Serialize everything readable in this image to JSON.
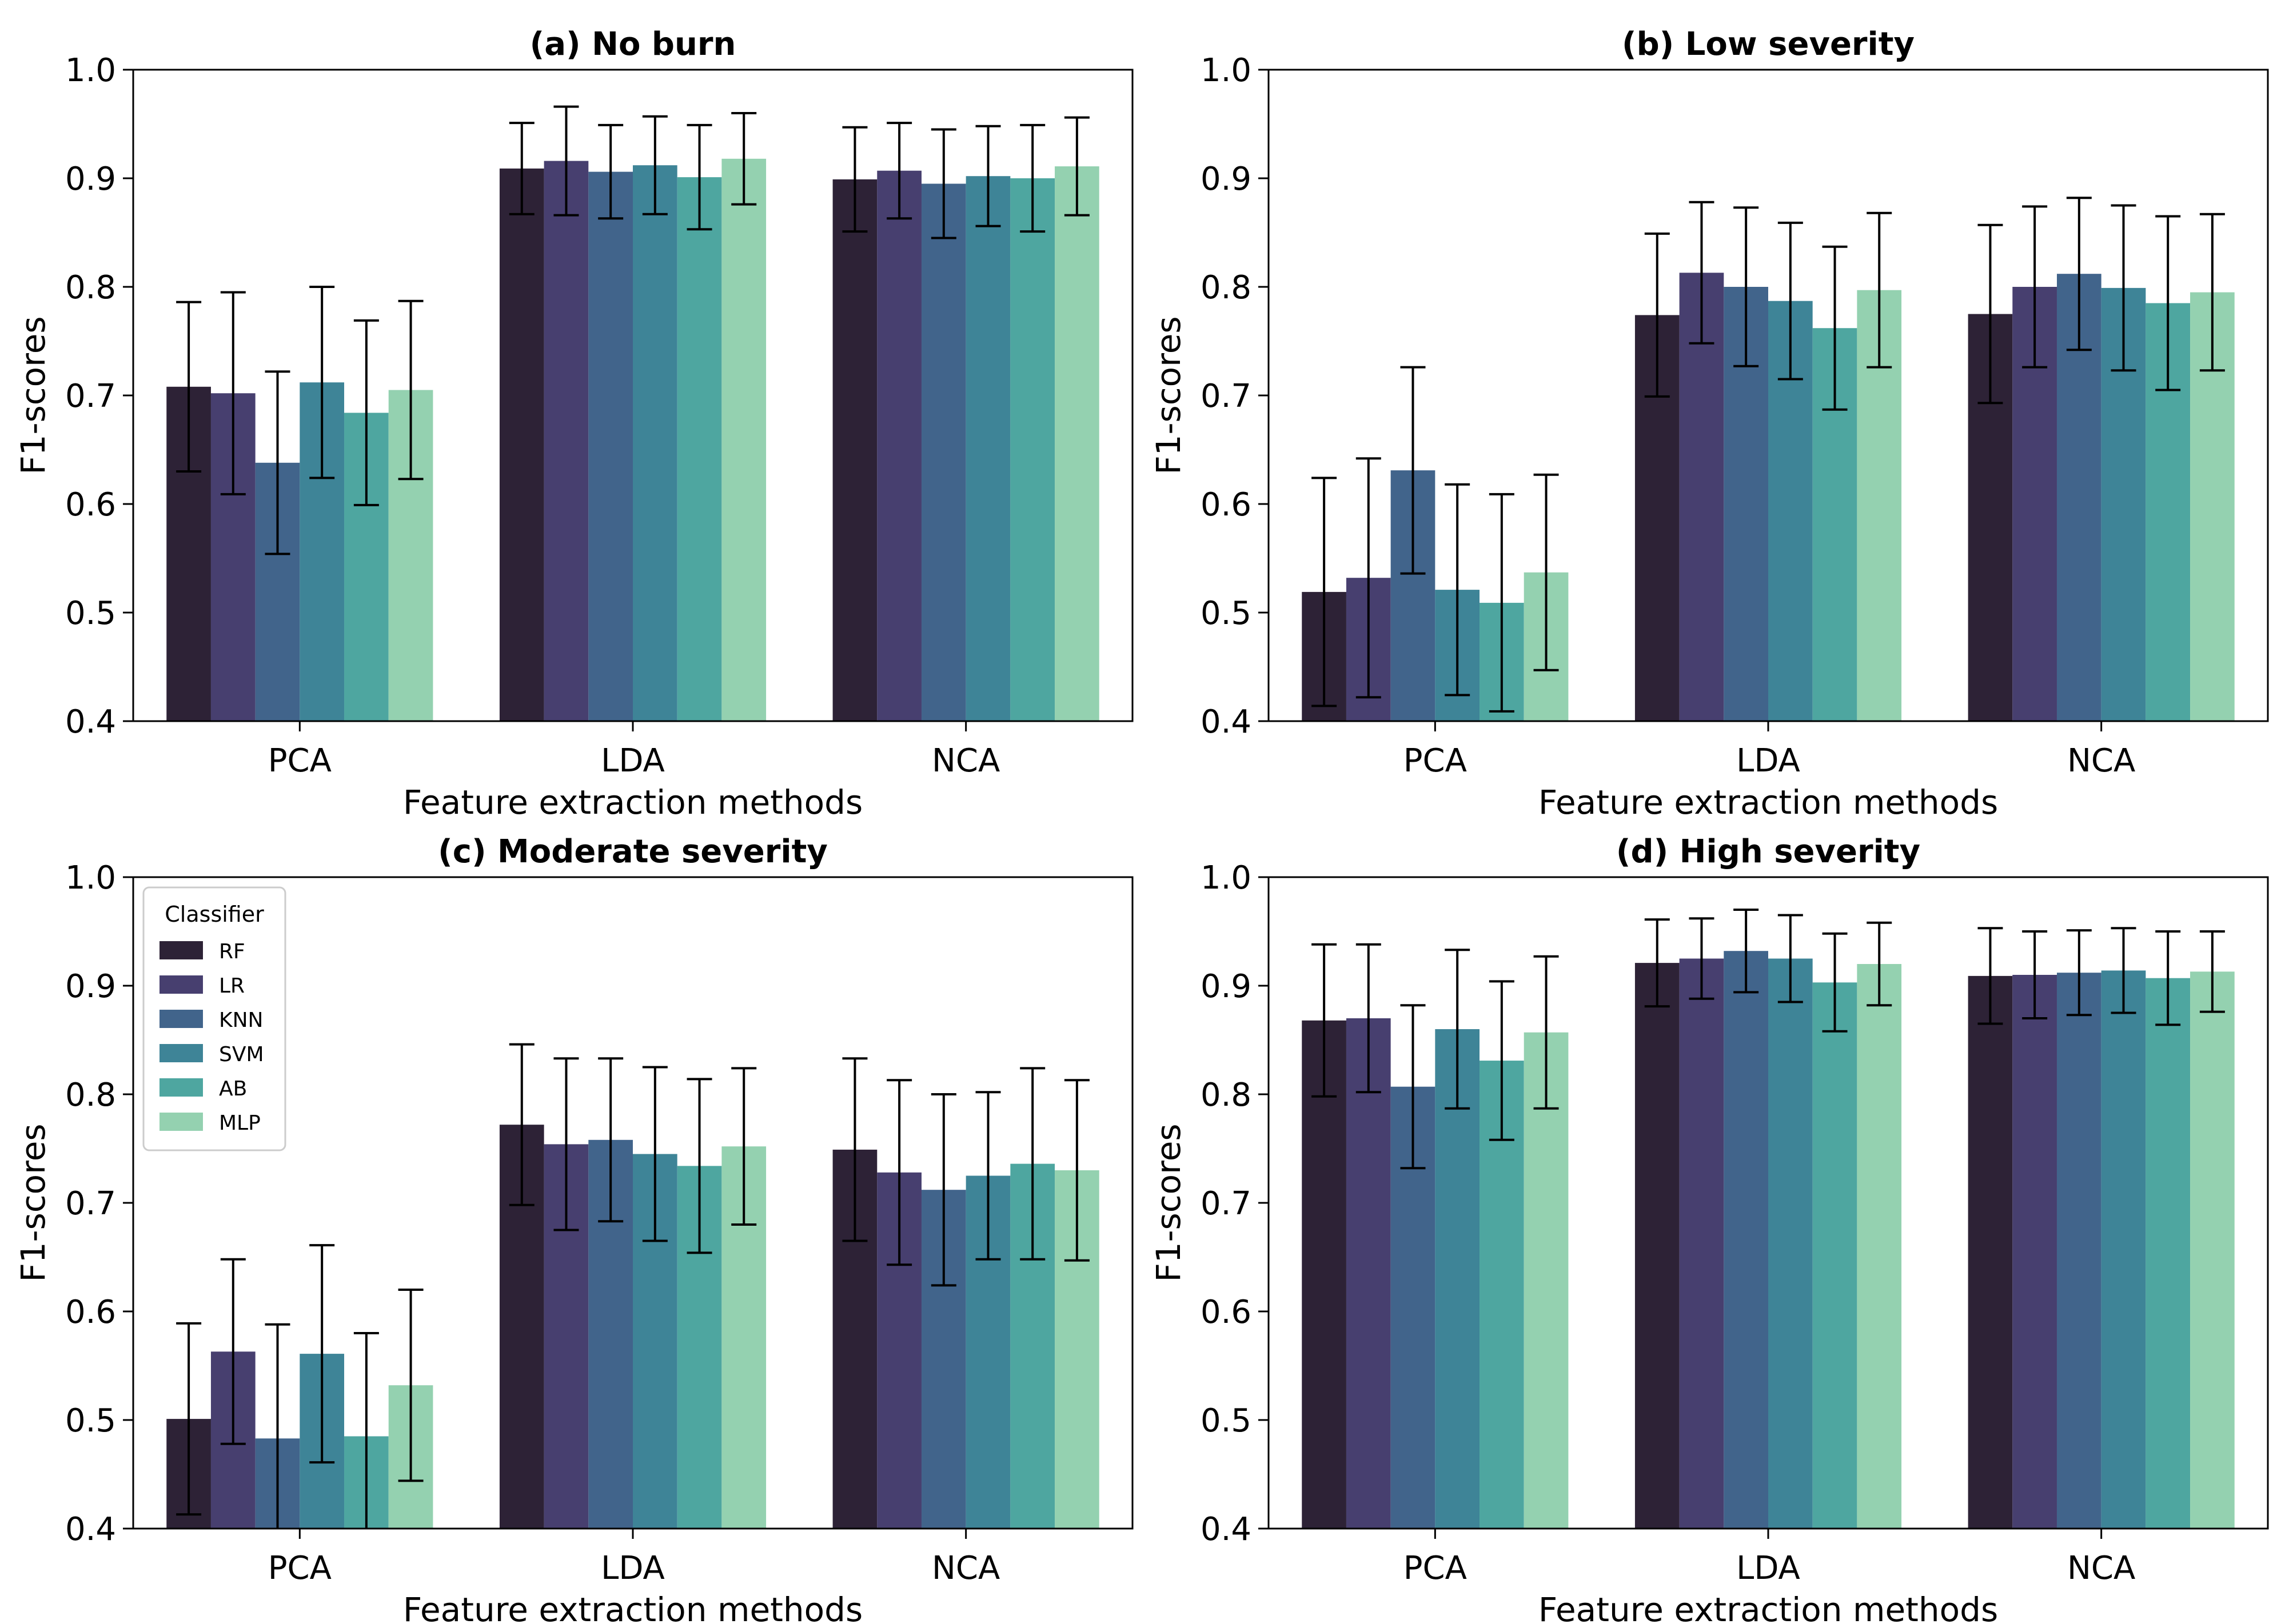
{
  "chart_data": [
    {
      "type": "bar",
      "title": "(a) No burn",
      "xlabel": "Feature extraction methods",
      "ylabel": "F1-scores",
      "ylim": [
        0.4,
        1.0
      ],
      "yticks": [
        "0.4",
        "0.5",
        "0.6",
        "0.7",
        "0.8",
        "0.9",
        "1.0"
      ],
      "categories": [
        "PCA",
        "LDA",
        "NCA"
      ],
      "series": [
        {
          "name": "RF",
          "values": [
            0.708,
            0.909,
            0.899
          ],
          "errors": [
            0.078,
            0.042,
            0.048
          ]
        },
        {
          "name": "LR",
          "values": [
            0.702,
            0.916,
            0.907
          ],
          "errors": [
            0.093,
            0.05,
            0.044
          ]
        },
        {
          "name": "KNN",
          "values": [
            0.638,
            0.906,
            0.895
          ],
          "errors": [
            0.084,
            0.043,
            0.05
          ]
        },
        {
          "name": "SVM",
          "values": [
            0.712,
            0.912,
            0.902
          ],
          "errors": [
            0.088,
            0.045,
            0.046
          ]
        },
        {
          "name": "AB",
          "values": [
            0.684,
            0.901,
            0.9
          ],
          "errors": [
            0.085,
            0.048,
            0.049
          ]
        },
        {
          "name": "MLP",
          "values": [
            0.705,
            0.918,
            0.911
          ],
          "errors": [
            0.082,
            0.042,
            0.045
          ]
        }
      ]
    },
    {
      "type": "bar",
      "title": "(b) Low severity",
      "xlabel": "Feature extraction methods",
      "ylabel": "F1-scores",
      "ylim": [
        0.4,
        1.0
      ],
      "yticks": [
        "0.4",
        "0.5",
        "0.6",
        "0.7",
        "0.8",
        "0.9",
        "1.0"
      ],
      "categories": [
        "PCA",
        "LDA",
        "NCA"
      ],
      "series": [
        {
          "name": "RF",
          "values": [
            0.519,
            0.774,
            0.775
          ],
          "errors": [
            0.105,
            0.075,
            0.082
          ]
        },
        {
          "name": "LR",
          "values": [
            0.532,
            0.813,
            0.8
          ],
          "errors": [
            0.11,
            0.065,
            0.074
          ]
        },
        {
          "name": "KNN",
          "values": [
            0.631,
            0.8,
            0.812
          ],
          "errors": [
            0.095,
            0.073,
            0.07
          ]
        },
        {
          "name": "SVM",
          "values": [
            0.521,
            0.787,
            0.799
          ],
          "errors": [
            0.097,
            0.072,
            0.076
          ]
        },
        {
          "name": "AB",
          "values": [
            0.509,
            0.762,
            0.785
          ],
          "errors": [
            0.1,
            0.075,
            0.08
          ]
        },
        {
          "name": "MLP",
          "values": [
            0.537,
            0.797,
            0.795
          ],
          "errors": [
            0.09,
            0.071,
            0.072
          ]
        }
      ]
    },
    {
      "type": "bar",
      "title": "(c) Moderate severity",
      "xlabel": "Feature extraction methods",
      "ylabel": "F1-scores",
      "ylim": [
        0.4,
        1.0
      ],
      "yticks": [
        "0.4",
        "0.5",
        "0.6",
        "0.7",
        "0.8",
        "0.9",
        "1.0"
      ],
      "categories": [
        "PCA",
        "LDA",
        "NCA"
      ],
      "series": [
        {
          "name": "RF",
          "values": [
            0.501,
            0.772,
            0.749
          ],
          "errors": [
            0.088,
            0.074,
            0.084
          ]
        },
        {
          "name": "LR",
          "values": [
            0.563,
            0.754,
            0.728
          ],
          "errors": [
            0.085,
            0.079,
            0.085
          ]
        },
        {
          "name": "KNN",
          "values": [
            0.483,
            0.758,
            0.712
          ],
          "errors": [
            0.105,
            0.075,
            0.088
          ]
        },
        {
          "name": "SVM",
          "values": [
            0.561,
            0.745,
            0.725
          ],
          "errors": [
            0.1,
            0.08,
            0.077
          ]
        },
        {
          "name": "AB",
          "values": [
            0.485,
            0.734,
            0.736
          ],
          "errors": [
            0.095,
            0.08,
            0.088
          ]
        },
        {
          "name": "MLP",
          "values": [
            0.532,
            0.752,
            0.73
          ],
          "errors": [
            0.088,
            0.072,
            0.083
          ]
        }
      ]
    },
    {
      "type": "bar",
      "title": "(d) High severity",
      "xlabel": "Feature extraction methods",
      "ylabel": "F1-scores",
      "ylim": [
        0.4,
        1.0
      ],
      "yticks": [
        "0.4",
        "0.5",
        "0.6",
        "0.7",
        "0.8",
        "0.9",
        "1.0"
      ],
      "categories": [
        "PCA",
        "LDA",
        "NCA"
      ],
      "series": [
        {
          "name": "RF",
          "values": [
            0.868,
            0.921,
            0.909
          ],
          "errors": [
            0.07,
            0.04,
            0.044
          ]
        },
        {
          "name": "LR",
          "values": [
            0.87,
            0.925,
            0.91
          ],
          "errors": [
            0.068,
            0.037,
            0.04
          ]
        },
        {
          "name": "KNN",
          "values": [
            0.807,
            0.932,
            0.912
          ],
          "errors": [
            0.075,
            0.038,
            0.039
          ]
        },
        {
          "name": "SVM",
          "values": [
            0.86,
            0.925,
            0.914
          ],
          "errors": [
            0.073,
            0.04,
            0.039
          ]
        },
        {
          "name": "AB",
          "values": [
            0.831,
            0.903,
            0.907
          ],
          "errors": [
            0.073,
            0.045,
            0.043
          ]
        },
        {
          "name": "MLP",
          "values": [
            0.857,
            0.92,
            0.913
          ],
          "errors": [
            0.07,
            0.038,
            0.037
          ]
        }
      ]
    }
  ],
  "legend": {
    "title": "Classifier",
    "entries": [
      "RF",
      "LR",
      "KNN",
      "SVM",
      "AB",
      "MLP"
    ],
    "placement": "upper-left of panel (c)"
  },
  "colors": {
    "RF": "#2d2236",
    "LR": "#473f6f",
    "KNN": "#41648b",
    "SVM": "#3e8497",
    "AB": "#4ea6a0",
    "MLP": "#94d1b0",
    "axes": "#000000",
    "background": "#ffffff"
  }
}
